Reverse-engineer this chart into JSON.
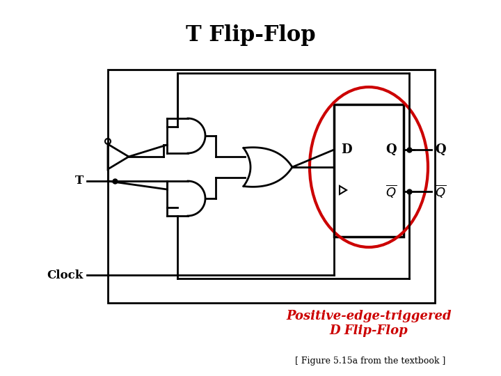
{
  "title": "T Flip-Flop",
  "subtitle": "Positive-edge-triggered\nD Flip-Flop",
  "footnote": "[ Figure 5.15a from the textbook ]",
  "title_fontsize": 22,
  "subtitle_fontsize": 13,
  "footnote_fontsize": 9,
  "bg_color": "#ffffff",
  "line_color": "#000000",
  "red_color": "#cc0000",
  "lw": 2.0,
  "lw_thin": 1.5
}
